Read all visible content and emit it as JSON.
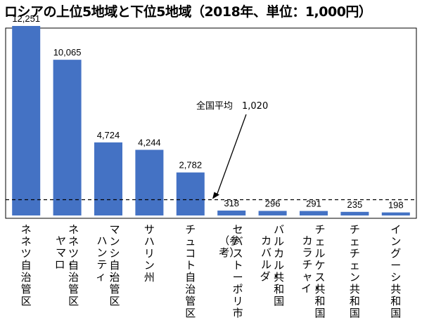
{
  "title": "ロシアの上位5地域と下位5地域（2018年、単位：1,000円）",
  "chart_data": {
    "type": "bar",
    "title": "ロシアの上位5地域と下位5地域（2018年、単位：1,000円）",
    "categories": [
      [
        "ネネツ自治管区"
      ],
      [
        "ネネツ自治管区",
        "ヤマロ・"
      ],
      [
        "マンシ自治管区",
        "ハンティ・"
      ],
      [
        "サハリン州"
      ],
      [
        "チュコト自治管区"
      ],
      [
        "セバストーポリ市",
        "（参考）"
      ],
      [
        "バルカル共和国",
        "カバルダ・"
      ],
      [
        "チェルケス共和国",
        "カラチャイ・"
      ],
      [
        "チェチェン共和国"
      ],
      [
        "イングーシ共和国"
      ]
    ],
    "values": [
      12251,
      10065,
      4724,
      4244,
      2782,
      318,
      296,
      291,
      235,
      198
    ],
    "value_labels": [
      "12,251",
      "10,065",
      "4,724",
      "4,244",
      "2,782",
      "318",
      "296",
      "291",
      "235",
      "198"
    ],
    "ylim": [
      0,
      13500
    ],
    "bar_color": "#4472C4",
    "reference_line": {
      "value": 1020,
      "label": "全国平均",
      "value_label": "1,020",
      "style": "dashed"
    },
    "grid": false,
    "legend": "none"
  }
}
